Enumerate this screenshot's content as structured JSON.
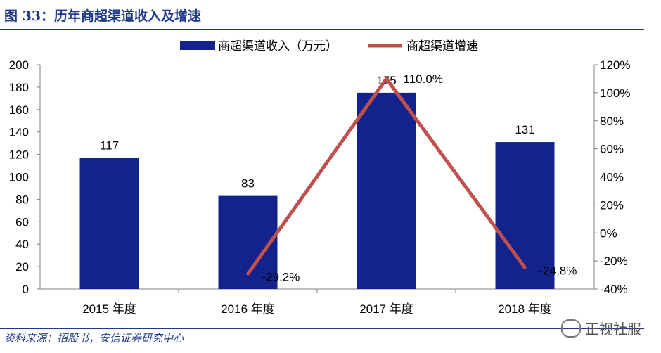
{
  "figure": {
    "title": "图 33：历年商超渠道收入及增速",
    "source": "资料来源：招股书，安信证券研究中心",
    "watermark": "正视社服"
  },
  "colors": {
    "bar": "#14238C",
    "line": "#C0504D",
    "axis": "#808080"
  },
  "chart_data": {
    "type": "bar",
    "title": "",
    "categories": [
      "2015 年度",
      "2016 年度",
      "2017 年度",
      "2018 年度"
    ],
    "series": [
      {
        "name": "商超渠道收入（万元）",
        "type": "bar",
        "axis": "left",
        "values": [
          117,
          83,
          175,
          131
        ],
        "labels": [
          "117",
          "83",
          "175",
          "131"
        ]
      },
      {
        "name": "商超渠道增速",
        "type": "line",
        "axis": "right",
        "values": [
          null,
          -29.2,
          110.0,
          -24.8
        ],
        "labels": [
          "",
          "-29.2%",
          "110.0%",
          "-24.8%"
        ]
      }
    ],
    "y_left": {
      "ylim": [
        0,
        200
      ],
      "ticks": [
        0,
        20,
        40,
        60,
        80,
        100,
        120,
        140,
        160,
        180,
        200
      ]
    },
    "y_right": {
      "ylim": [
        -40,
        120
      ],
      "ticks": [
        -40,
        -20,
        0,
        20,
        40,
        60,
        80,
        100,
        120
      ],
      "tick_labels": [
        "-40%",
        "-20%",
        "0%",
        "20%",
        "40%",
        "60%",
        "80%",
        "100%",
        "120%"
      ]
    },
    "legend_position": "top-center",
    "grid": false
  }
}
